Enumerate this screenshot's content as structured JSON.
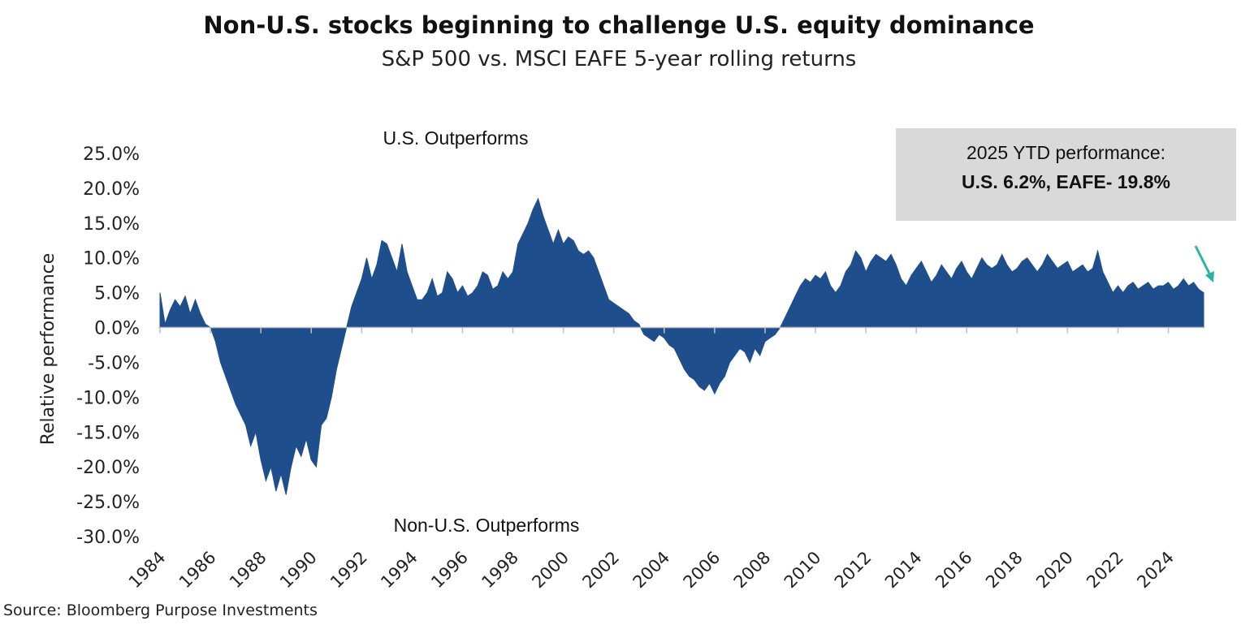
{
  "title": "Non-U.S. stocks beginning to challenge U.S. equity dominance",
  "subtitle": "S&P 500 vs. MSCI EAFE 5-year rolling returns",
  "source": "Source: Bloomberg Purpose Investments",
  "callout": {
    "line1": "2025 YTD performance:",
    "line2": "U.S. 6.2%, EAFE- 19.8%"
  },
  "colors": {
    "area": "#1f4e8c",
    "arrow": "#2ab3a6",
    "callout_bg": "#d9d9d9"
  },
  "chart_data": {
    "type": "area",
    "title": "Non-U.S. stocks beginning to challenge U.S. equity dominance",
    "subtitle": "S&P 500 vs. MSCI EAFE 5-year rolling returns",
    "ylabel": "Relative performance",
    "xlabel": "",
    "ylim": [
      -30,
      25
    ],
    "xlim": [
      1984,
      2025.4
    ],
    "yticks": [
      "25.0%",
      "20.0%",
      "15.0%",
      "10.0%",
      "5.0%",
      "0.0%",
      "-5.0%",
      "-10.0%",
      "-15.0%",
      "-20.0%",
      "-25.0%",
      "-30.0%"
    ],
    "xticks": [
      "1984",
      "1986",
      "1988",
      "1990",
      "1992",
      "1994",
      "1996",
      "1998",
      "2000",
      "2002",
      "2004",
      "2006",
      "2008",
      "2010",
      "2012",
      "2014",
      "2016",
      "2018",
      "2020",
      "2022",
      "2024"
    ],
    "annotations": [
      "U.S. Outperforms",
      "Non-U.S. Outperforms"
    ],
    "grid": false,
    "legend": "none",
    "series": [
      {
        "values": [
          [
            1984.0,
            5.0
          ],
          [
            1984.2,
            0.5
          ],
          [
            1984.4,
            2.5
          ],
          [
            1984.6,
            4.0
          ],
          [
            1984.8,
            3.0
          ],
          [
            1985.0,
            4.5
          ],
          [
            1985.2,
            2.0
          ],
          [
            1985.4,
            4.0
          ],
          [
            1985.6,
            2.0
          ],
          [
            1985.8,
            0.5
          ],
          [
            1986.0,
            0.0
          ],
          [
            1986.2,
            -2.0
          ],
          [
            1986.4,
            -5.0
          ],
          [
            1986.6,
            -7.0
          ],
          [
            1986.8,
            -9.0
          ],
          [
            1987.0,
            -11.0
          ],
          [
            1987.2,
            -12.5
          ],
          [
            1987.4,
            -14.0
          ],
          [
            1987.6,
            -17.0
          ],
          [
            1987.8,
            -15.0
          ],
          [
            1988.0,
            -19.0
          ],
          [
            1988.2,
            -22.0
          ],
          [
            1988.4,
            -20.0
          ],
          [
            1988.6,
            -23.5
          ],
          [
            1988.8,
            -21.0
          ],
          [
            1989.0,
            -24.0
          ],
          [
            1989.2,
            -20.0
          ],
          [
            1989.4,
            -17.0
          ],
          [
            1989.6,
            -18.5
          ],
          [
            1989.8,
            -16.0
          ],
          [
            1990.0,
            -19.0
          ],
          [
            1990.2,
            -20.0
          ],
          [
            1990.4,
            -14.0
          ],
          [
            1990.6,
            -13.0
          ],
          [
            1990.8,
            -10.0
          ],
          [
            1991.0,
            -6.0
          ],
          [
            1991.2,
            -3.0
          ],
          [
            1991.4,
            0.0
          ],
          [
            1991.6,
            3.0
          ],
          [
            1991.8,
            5.0
          ],
          [
            1992.0,
            7.0
          ],
          [
            1992.2,
            10.0
          ],
          [
            1992.4,
            7.0
          ],
          [
            1992.6,
            9.0
          ],
          [
            1992.8,
            12.5
          ],
          [
            1993.0,
            12.0
          ],
          [
            1993.2,
            10.0
          ],
          [
            1993.4,
            8.0
          ],
          [
            1993.6,
            12.0
          ],
          [
            1993.8,
            8.0
          ],
          [
            1994.0,
            6.0
          ],
          [
            1994.2,
            4.0
          ],
          [
            1994.4,
            4.0
          ],
          [
            1994.6,
            5.0
          ],
          [
            1994.8,
            7.0
          ],
          [
            1995.0,
            4.5
          ],
          [
            1995.2,
            5.0
          ],
          [
            1995.4,
            8.0
          ],
          [
            1995.6,
            7.0
          ],
          [
            1995.8,
            5.0
          ],
          [
            1996.0,
            6.0
          ],
          [
            1996.2,
            4.5
          ],
          [
            1996.4,
            5.0
          ],
          [
            1996.6,
            6.0
          ],
          [
            1996.8,
            8.0
          ],
          [
            1997.0,
            7.5
          ],
          [
            1997.2,
            5.5
          ],
          [
            1997.4,
            6.0
          ],
          [
            1997.6,
            8.0
          ],
          [
            1997.8,
            7.0
          ],
          [
            1998.0,
            8.0
          ],
          [
            1998.2,
            12.0
          ],
          [
            1998.4,
            13.5
          ],
          [
            1998.6,
            15.0
          ],
          [
            1998.8,
            17.0
          ],
          [
            1999.0,
            18.5
          ],
          [
            1999.2,
            16.0
          ],
          [
            1999.4,
            14.0
          ],
          [
            1999.6,
            12.0
          ],
          [
            1999.8,
            14.0
          ],
          [
            2000.0,
            12.0
          ],
          [
            2000.2,
            13.0
          ],
          [
            2000.4,
            12.5
          ],
          [
            2000.6,
            11.0
          ],
          [
            2000.8,
            10.5
          ],
          [
            2001.0,
            11.0
          ],
          [
            2001.2,
            10.0
          ],
          [
            2001.4,
            8.0
          ],
          [
            2001.6,
            6.0
          ],
          [
            2001.8,
            4.0
          ],
          [
            2002.0,
            3.5
          ],
          [
            2002.2,
            3.0
          ],
          [
            2002.4,
            2.5
          ],
          [
            2002.6,
            2.0
          ],
          [
            2002.8,
            1.0
          ],
          [
            2003.0,
            0.5
          ],
          [
            2003.2,
            -1.0
          ],
          [
            2003.4,
            -1.5
          ],
          [
            2003.6,
            -2.0
          ],
          [
            2003.8,
            -1.0
          ],
          [
            2004.0,
            -1.5
          ],
          [
            2004.2,
            -2.5
          ],
          [
            2004.4,
            -3.0
          ],
          [
            2004.6,
            -4.5
          ],
          [
            2004.8,
            -6.0
          ],
          [
            2005.0,
            -7.0
          ],
          [
            2005.2,
            -7.5
          ],
          [
            2005.4,
            -8.5
          ],
          [
            2005.6,
            -9.0
          ],
          [
            2005.8,
            -8.0
          ],
          [
            2006.0,
            -9.5
          ],
          [
            2006.2,
            -8.0
          ],
          [
            2006.4,
            -7.0
          ],
          [
            2006.6,
            -5.0
          ],
          [
            2006.8,
            -4.0
          ],
          [
            2007.0,
            -3.0
          ],
          [
            2007.2,
            -3.5
          ],
          [
            2007.4,
            -5.0
          ],
          [
            2007.6,
            -3.0
          ],
          [
            2007.8,
            -4.0
          ],
          [
            2008.0,
            -2.0
          ],
          [
            2008.2,
            -1.5
          ],
          [
            2008.4,
            -1.0
          ],
          [
            2008.6,
            0.0
          ],
          [
            2008.8,
            1.5
          ],
          [
            2009.0,
            3.0
          ],
          [
            2009.2,
            4.5
          ],
          [
            2009.4,
            6.0
          ],
          [
            2009.6,
            7.0
          ],
          [
            2009.8,
            6.5
          ],
          [
            2010.0,
            7.5
          ],
          [
            2010.2,
            7.0
          ],
          [
            2010.4,
            8.0
          ],
          [
            2010.6,
            6.0
          ],
          [
            2010.8,
            5.0
          ],
          [
            2011.0,
            6.0
          ],
          [
            2011.2,
            8.0
          ],
          [
            2011.4,
            9.0
          ],
          [
            2011.6,
            11.0
          ],
          [
            2011.8,
            10.0
          ],
          [
            2012.0,
            8.0
          ],
          [
            2012.2,
            9.5
          ],
          [
            2012.4,
            10.5
          ],
          [
            2012.6,
            10.0
          ],
          [
            2012.8,
            9.5
          ],
          [
            2013.0,
            10.5
          ],
          [
            2013.2,
            9.0
          ],
          [
            2013.4,
            7.0
          ],
          [
            2013.6,
            6.0
          ],
          [
            2013.8,
            7.5
          ],
          [
            2014.0,
            8.5
          ],
          [
            2014.2,
            9.5
          ],
          [
            2014.4,
            8.0
          ],
          [
            2014.6,
            6.5
          ],
          [
            2014.8,
            7.5
          ],
          [
            2015.0,
            9.0
          ],
          [
            2015.2,
            8.0
          ],
          [
            2015.4,
            7.0
          ],
          [
            2015.6,
            8.5
          ],
          [
            2015.8,
            9.5
          ],
          [
            2016.0,
            8.0
          ],
          [
            2016.2,
            7.0
          ],
          [
            2016.4,
            8.5
          ],
          [
            2016.6,
            10.0
          ],
          [
            2016.8,
            9.0
          ],
          [
            2017.0,
            8.5
          ],
          [
            2017.2,
            9.0
          ],
          [
            2017.4,
            10.5
          ],
          [
            2017.6,
            9.0
          ],
          [
            2017.8,
            8.0
          ],
          [
            2018.0,
            8.5
          ],
          [
            2018.2,
            9.5
          ],
          [
            2018.4,
            10.0
          ],
          [
            2018.6,
            9.0
          ],
          [
            2018.8,
            8.0
          ],
          [
            2019.0,
            9.0
          ],
          [
            2019.2,
            10.5
          ],
          [
            2019.4,
            9.5
          ],
          [
            2019.6,
            8.5
          ],
          [
            2019.8,
            9.0
          ],
          [
            2020.0,
            9.5
          ],
          [
            2020.2,
            8.0
          ],
          [
            2020.4,
            8.5
          ],
          [
            2020.6,
            9.0
          ],
          [
            2020.8,
            8.0
          ],
          [
            2021.0,
            8.5
          ],
          [
            2021.2,
            11.0
          ],
          [
            2021.4,
            8.0
          ],
          [
            2021.6,
            6.5
          ],
          [
            2021.8,
            5.0
          ],
          [
            2022.0,
            6.0
          ],
          [
            2022.2,
            5.0
          ],
          [
            2022.4,
            6.0
          ],
          [
            2022.6,
            6.5
          ],
          [
            2022.8,
            5.5
          ],
          [
            2023.0,
            6.0
          ],
          [
            2023.2,
            6.5
          ],
          [
            2023.4,
            5.5
          ],
          [
            2023.6,
            6.0
          ],
          [
            2023.8,
            6.0
          ],
          [
            2024.0,
            6.5
          ],
          [
            2024.2,
            5.5
          ],
          [
            2024.4,
            6.0
          ],
          [
            2024.6,
            7.0
          ],
          [
            2024.8,
            6.0
          ],
          [
            2025.0,
            6.5
          ],
          [
            2025.2,
            5.5
          ],
          [
            2025.4,
            5.0
          ]
        ]
      }
    ]
  }
}
